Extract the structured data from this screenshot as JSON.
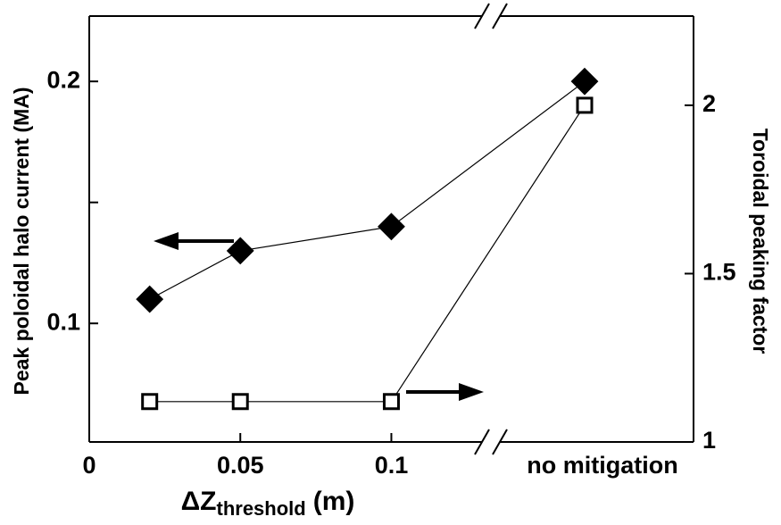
{
  "chart_data": {
    "type": "line",
    "xlabel": "ΔZ",
    "xlabel_sub": "threshold",
    "xlabel_unit": "(m)",
    "ylabel": "Peak poloidal halo current (MA)",
    "y2label": "Toroidal peaking factor",
    "x": [
      0.02,
      0.05,
      0.1,
      "no mitigation"
    ],
    "xlim": [
      0,
      0.13
    ],
    "xticks": [
      0,
      0.05,
      0.1
    ],
    "ylim": [
      0.051,
      0.227
    ],
    "yticks": [
      0.1,
      0.2
    ],
    "yminorticks": [
      0.15
    ],
    "y2lim": [
      1,
      2.265
    ],
    "y2ticks": [
      1,
      1.5,
      2
    ],
    "series": [
      {
        "color": "#000000",
        "marker": "diamond",
        "filled": true,
        "values": [
          0.11,
          0.13,
          0.14,
          0.2
        ]
      },
      {
        "color": "#000000",
        "marker": "square",
        "filled": false,
        "axis": "y2",
        "values": [
          1.12,
          1.12,
          1.12,
          2.0
        ]
      }
    ]
  }
}
